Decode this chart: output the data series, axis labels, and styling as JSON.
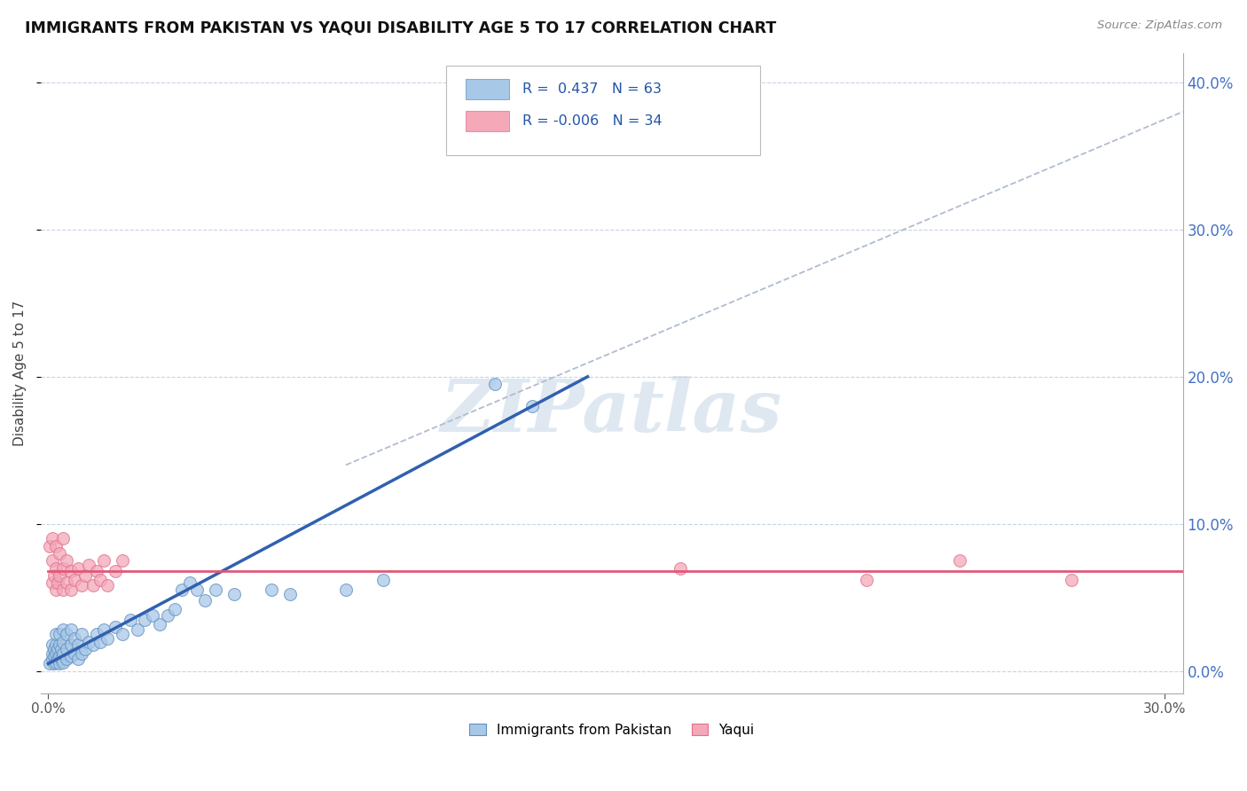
{
  "title": "IMMIGRANTS FROM PAKISTAN VS YAQUI DISABILITY AGE 5 TO 17 CORRELATION CHART",
  "source": "Source: ZipAtlas.com",
  "xlim": [
    -0.002,
    0.305
  ],
  "ylim": [
    -0.015,
    0.42
  ],
  "xticks": [
    0.0,
    0.3
  ],
  "yticks": [
    0.0,
    0.1,
    0.2,
    0.3,
    0.4
  ],
  "ylabel": "Disability Age 5 to 17",
  "blue_R": "0.437",
  "blue_N": "63",
  "pink_R": "-0.006",
  "pink_N": "34",
  "blue_color": "#a8c8e8",
  "pink_color": "#f4a8b8",
  "blue_edge": "#6090c0",
  "pink_edge": "#e07090",
  "blue_label": "Immigrants from Pakistan",
  "pink_label": "Yaqui",
  "blue_scatter": [
    [
      0.0005,
      0.005
    ],
    [
      0.001,
      0.008
    ],
    [
      0.001,
      0.012
    ],
    [
      0.001,
      0.018
    ],
    [
      0.0015,
      0.005
    ],
    [
      0.0015,
      0.01
    ],
    [
      0.0015,
      0.015
    ],
    [
      0.002,
      0.006
    ],
    [
      0.002,
      0.012
    ],
    [
      0.002,
      0.018
    ],
    [
      0.002,
      0.025
    ],
    [
      0.0025,
      0.008
    ],
    [
      0.0025,
      0.015
    ],
    [
      0.003,
      0.005
    ],
    [
      0.003,
      0.01
    ],
    [
      0.003,
      0.018
    ],
    [
      0.003,
      0.025
    ],
    [
      0.0035,
      0.008
    ],
    [
      0.0035,
      0.015
    ],
    [
      0.004,
      0.006
    ],
    [
      0.004,
      0.012
    ],
    [
      0.004,
      0.02
    ],
    [
      0.004,
      0.028
    ],
    [
      0.005,
      0.008
    ],
    [
      0.005,
      0.015
    ],
    [
      0.005,
      0.025
    ],
    [
      0.006,
      0.01
    ],
    [
      0.006,
      0.018
    ],
    [
      0.006,
      0.028
    ],
    [
      0.007,
      0.012
    ],
    [
      0.007,
      0.022
    ],
    [
      0.008,
      0.008
    ],
    [
      0.008,
      0.018
    ],
    [
      0.009,
      0.012
    ],
    [
      0.009,
      0.025
    ],
    [
      0.01,
      0.015
    ],
    [
      0.011,
      0.02
    ],
    [
      0.012,
      0.018
    ],
    [
      0.013,
      0.025
    ],
    [
      0.014,
      0.02
    ],
    [
      0.015,
      0.028
    ],
    [
      0.016,
      0.022
    ],
    [
      0.018,
      0.03
    ],
    [
      0.02,
      0.025
    ],
    [
      0.022,
      0.035
    ],
    [
      0.024,
      0.028
    ],
    [
      0.026,
      0.035
    ],
    [
      0.028,
      0.038
    ],
    [
      0.03,
      0.032
    ],
    [
      0.032,
      0.038
    ],
    [
      0.034,
      0.042
    ],
    [
      0.036,
      0.055
    ],
    [
      0.038,
      0.06
    ],
    [
      0.04,
      0.055
    ],
    [
      0.042,
      0.048
    ],
    [
      0.045,
      0.055
    ],
    [
      0.05,
      0.052
    ],
    [
      0.06,
      0.055
    ],
    [
      0.065,
      0.052
    ],
    [
      0.08,
      0.055
    ],
    [
      0.09,
      0.062
    ],
    [
      0.12,
      0.195
    ],
    [
      0.13,
      0.18
    ]
  ],
  "pink_scatter": [
    [
      0.0005,
      0.085
    ],
    [
      0.001,
      0.06
    ],
    [
      0.001,
      0.075
    ],
    [
      0.001,
      0.09
    ],
    [
      0.0015,
      0.065
    ],
    [
      0.002,
      0.055
    ],
    [
      0.002,
      0.07
    ],
    [
      0.002,
      0.085
    ],
    [
      0.0025,
      0.06
    ],
    [
      0.003,
      0.065
    ],
    [
      0.003,
      0.08
    ],
    [
      0.004,
      0.055
    ],
    [
      0.004,
      0.07
    ],
    [
      0.004,
      0.09
    ],
    [
      0.005,
      0.06
    ],
    [
      0.005,
      0.075
    ],
    [
      0.006,
      0.055
    ],
    [
      0.006,
      0.068
    ],
    [
      0.007,
      0.062
    ],
    [
      0.008,
      0.07
    ],
    [
      0.009,
      0.058
    ],
    [
      0.01,
      0.065
    ],
    [
      0.011,
      0.072
    ],
    [
      0.012,
      0.058
    ],
    [
      0.013,
      0.068
    ],
    [
      0.014,
      0.062
    ],
    [
      0.015,
      0.075
    ],
    [
      0.016,
      0.058
    ],
    [
      0.018,
      0.068
    ],
    [
      0.02,
      0.075
    ],
    [
      0.17,
      0.07
    ],
    [
      0.22,
      0.062
    ],
    [
      0.245,
      0.075
    ],
    [
      0.275,
      0.062
    ]
  ],
  "background_color": "#ffffff",
  "grid_color": "#c8d4e4",
  "watermark_text": "ZIPatlas",
  "trendline_blue_x0": 0.0,
  "trendline_blue_y0": 0.005,
  "trendline_blue_x1": 0.145,
  "trendline_blue_y1": 0.2,
  "trendline_pink_x0": 0.0,
  "trendline_pink_y0": 0.068,
  "trendline_pink_x1": 0.305,
  "trendline_pink_y1": 0.068,
  "trendline_dash_x0": 0.08,
  "trendline_dash_y0": 0.14,
  "trendline_dash_x1": 0.305,
  "trendline_dash_y1": 0.38
}
